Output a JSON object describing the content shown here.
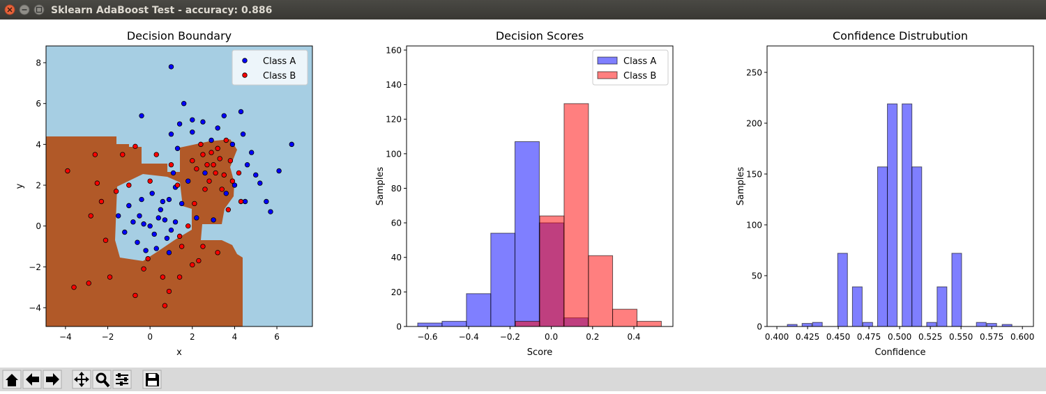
{
  "window": {
    "title": "Sklearn AdaBoost Test - accuracy: 0.886"
  },
  "chart_data": [
    {
      "type": "scatter",
      "title": "Decision Boundary",
      "x_label": "x",
      "y_label": "y",
      "xlim": [
        -4.92,
        7.68
      ],
      "ylim": [
        -4.92,
        8.82
      ],
      "xticks": [
        {
          "value": -4,
          "label": "−4"
        },
        {
          "value": -2,
          "label": "−2"
        },
        0,
        2,
        4,
        6
      ],
      "yticks": [
        {
          "value": -4,
          "label": "−4"
        },
        {
          "value": -2,
          "label": "−2"
        },
        0,
        2,
        4,
        6,
        8
      ],
      "legend": "upper right",
      "series": [
        {
          "name": "Class A",
          "color": "#0000ff",
          "x": [
            1,
            -0.4,
            1.6,
            6.7,
            6.1,
            5.7,
            5.5,
            5.2,
            4.8,
            4.4,
            4.3,
            3.5,
            2.5,
            2.0,
            1.4,
            1.0,
            1.3,
            1.1,
            1.2,
            2.0,
            3.2,
            3.9,
            4.6,
            5.0,
            3.0,
            2.2,
            1.5,
            0,
            -0.5,
            0.5,
            -1,
            -1.5,
            -1.2,
            -0.6,
            0.3,
            0.8,
            1.2,
            0.6,
            0.1,
            -0.4,
            0.9,
            -0.8,
            0.2,
            -0.2,
            0.7,
            1.8,
            2.6,
            3.6,
            4.0,
            2.9,
            4.5,
            0.9,
            -0.3,
            0.4,
            1.0
          ],
          "y": [
            7.8,
            5.4,
            6,
            4,
            2.7,
            0.7,
            1.2,
            2.1,
            3.6,
            4.5,
            5.6,
            5.4,
            5.1,
            5.2,
            5.0,
            4.5,
            3.8,
            2.6,
            1.9,
            4.6,
            4.8,
            4.0,
            3.0,
            2.5,
            0.3,
            0.4,
            1.1,
            0,
            0.5,
            0.8,
            1,
            0.5,
            -0.3,
            -0.8,
            -1.1,
            -0.6,
            0.2,
            1.2,
            1.6,
            1.3,
            1.3,
            0.2,
            -0.4,
            -1.2,
            0.3,
            2.2,
            2.6,
            1.6,
            2.0,
            4.2,
            1.2,
            -1.3,
            0.1,
            0.4,
            -0.2
          ]
        },
        {
          "name": "Class B",
          "color": "#ff0000",
          "x": [
            3,
            2.5,
            3.5,
            2.2,
            3.8,
            3.2,
            2.8,
            3.4,
            2.4,
            3.6,
            4.2,
            2.0,
            3.9,
            2.7,
            3.1,
            3.3,
            2.9,
            2.6,
            3.7,
            2.1,
            4.3,
            1.8,
            2.5,
            1.4,
            -3.9,
            -3.6,
            -2.9,
            -2.8,
            -2.5,
            -2.1,
            -1.9,
            -1.6,
            -1.3,
            -0.7,
            -0.1,
            0.6,
            0.9,
            0.7,
            1.4,
            2.0,
            3.2,
            1.5,
            0.0,
            -0.7,
            1.0,
            -2.3,
            -2.6,
            -1.0,
            0.3,
            2.3,
            -0.3,
            1.3
          ],
          "y": [
            3,
            3.5,
            2.5,
            2.8,
            3.2,
            3.8,
            2.2,
            1.8,
            4.0,
            4.2,
            2.6,
            3.2,
            2.2,
            3.0,
            2.6,
            3.3,
            3.6,
            1.8,
            0.8,
            1.1,
            1.2,
            0.0,
            -1.0,
            -0.5,
            2.7,
            -3.0,
            -2.8,
            0.5,
            2.1,
            -0.7,
            -2.5,
            1.7,
            3.5,
            -3.4,
            -1.6,
            -2.5,
            -3.2,
            -3.9,
            -2.5,
            -1.9,
            -1.3,
            -1.0,
            2.2,
            3.9,
            3.0,
            1.2,
            3.5,
            2.0,
            3.5,
            -1.7,
            -2.1,
            2.0
          ]
        }
      ]
    },
    {
      "type": "histogram",
      "title": "Decision Scores",
      "x_label": "Score",
      "y_label": "Samples",
      "xlim": [
        -0.701,
        0.589
      ],
      "ylim": [
        0,
        162.4
      ],
      "xticks": [
        {
          "value": -0.6,
          "label": "−0.6"
        },
        {
          "value": -0.4,
          "label": "−0.4"
        },
        {
          "value": -0.2,
          "label": "−0.2"
        },
        {
          "value": 0,
          "label": "0.0"
        },
        0.2,
        0.4
      ],
      "yticks": [
        0,
        20,
        40,
        60,
        80,
        100,
        120,
        140,
        160
      ],
      "legend": "upper right",
      "alpha": 0.5,
      "series": [
        {
          "name": "Class A",
          "color": "#0000ff",
          "bins": [
            -0.647,
            -0.529,
            -0.411,
            -0.293,
            -0.176,
            -0.058,
            0.06,
            0.178
          ],
          "values": [
            2,
            3,
            19,
            54,
            107,
            60,
            5
          ]
        },
        {
          "name": "Class B",
          "color": "#ff0000",
          "bins": [
            -0.174,
            -0.056,
            0.062,
            0.18,
            0.297,
            0.415,
            0.533
          ],
          "values": [
            3,
            64,
            129,
            41,
            10,
            3
          ]
        }
      ]
    },
    {
      "type": "bar",
      "title": "Confidence Distrubution",
      "x_label": "Confidence",
      "y_label": "Samples",
      "xlim": [
        0.392,
        0.609
      ],
      "ylim": [
        0,
        276
      ],
      "xticks": [
        {
          "value": 0.4,
          "label": "0.400"
        },
        {
          "value": 0.425,
          "label": "0.425"
        },
        {
          "value": 0.45,
          "label": "0.450"
        },
        {
          "value": 0.475,
          "label": "0.475"
        },
        {
          "value": 0.5,
          "label": "0.500"
        },
        {
          "value": 0.525,
          "label": "0.525"
        },
        {
          "value": 0.55,
          "label": "0.550"
        },
        {
          "value": 0.575,
          "label": "0.575"
        },
        {
          "value": 0.6,
          "label": "0.600"
        }
      ],
      "yticks": [
        0,
        50,
        100,
        150,
        200,
        250
      ],
      "color": "#0000ff",
      "alpha": 0.5,
      "x": [
        0.4125,
        0.4245,
        0.433,
        0.4535,
        0.4655,
        0.474,
        0.486,
        0.494,
        0.506,
        0.514,
        0.526,
        0.5345,
        0.5465,
        0.5665,
        0.575,
        0.5875
      ],
      "values": [
        2,
        3,
        4,
        72,
        39,
        4,
        157,
        219,
        219,
        157,
        4,
        39,
        72,
        4,
        3,
        2
      ]
    }
  ]
}
